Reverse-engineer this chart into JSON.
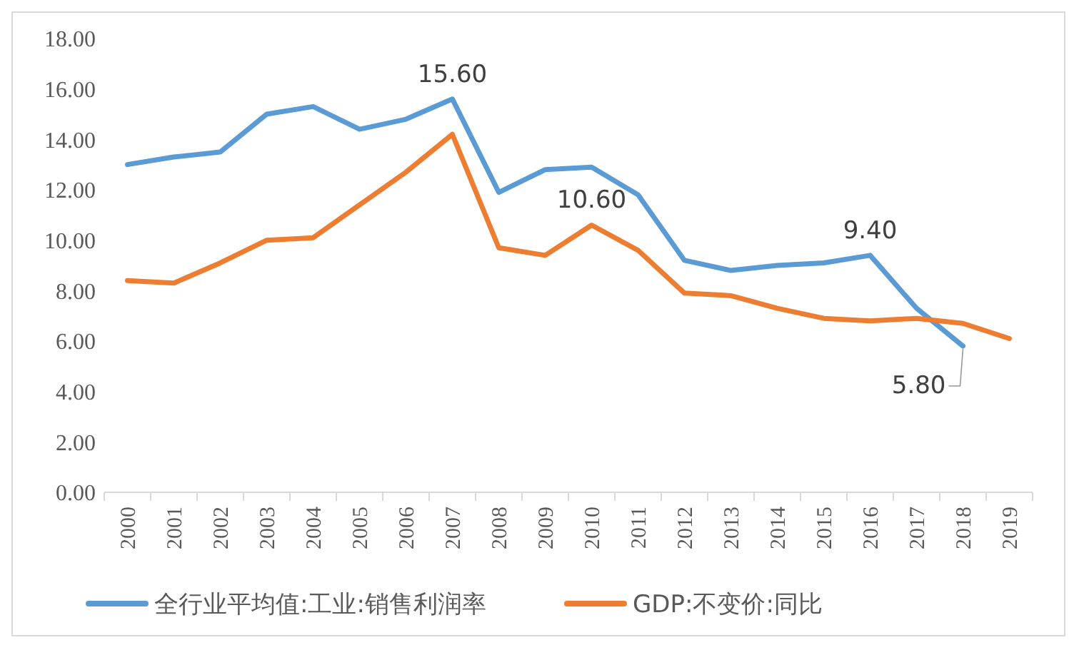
{
  "chart_data": {
    "type": "line",
    "categories": [
      "2000",
      "2001",
      "2002",
      "2003",
      "2004",
      "2005",
      "2006",
      "2007",
      "2008",
      "2009",
      "2010",
      "2011",
      "2012",
      "2013",
      "2014",
      "2015",
      "2016",
      "2017",
      "2018",
      "2019"
    ],
    "series": [
      {
        "name": "全行业平均值:工业:销售利润率",
        "color": "#5b9bd5",
        "values": [
          13.0,
          13.3,
          13.5,
          15.0,
          15.3,
          14.4,
          14.8,
          15.6,
          11.9,
          12.8,
          12.9,
          11.8,
          9.2,
          8.8,
          9.0,
          9.1,
          9.4,
          7.3,
          5.8,
          null
        ],
        "value_labels": [
          null,
          null,
          null,
          null,
          null,
          null,
          null,
          "15.60",
          null,
          null,
          null,
          null,
          null,
          null,
          null,
          null,
          "9.40",
          null,
          "5.80",
          null
        ]
      },
      {
        "name": "GDP:不变价:同比",
        "color": "#ed7d31",
        "values": [
          8.4,
          8.3,
          9.1,
          10.0,
          10.1,
          11.4,
          12.7,
          14.2,
          9.7,
          9.4,
          10.6,
          9.6,
          7.9,
          7.8,
          7.3,
          6.9,
          6.8,
          6.9,
          6.7,
          6.1
        ],
        "value_labels": [
          null,
          null,
          null,
          null,
          null,
          null,
          null,
          null,
          null,
          null,
          "10.60",
          null,
          null,
          null,
          null,
          null,
          null,
          null,
          null,
          null
        ]
      }
    ],
    "ylim": [
      0,
      18
    ],
    "yticks": [
      {
        "value": 0,
        "label": "0.00"
      },
      {
        "value": 2,
        "label": "2.00"
      },
      {
        "value": 4,
        "label": "4.00"
      },
      {
        "value": 6,
        "label": "6.00"
      },
      {
        "value": 8,
        "label": "8.00"
      },
      {
        "value": 10,
        "label": "10.00"
      },
      {
        "value": 12,
        "label": "12.00"
      },
      {
        "value": 14,
        "label": "14.00"
      },
      {
        "value": 16,
        "label": "16.00"
      },
      {
        "value": 18,
        "label": "18.00"
      }
    ],
    "grid": false,
    "legend": "bottom",
    "marker": "none",
    "line_style": "solid"
  }
}
